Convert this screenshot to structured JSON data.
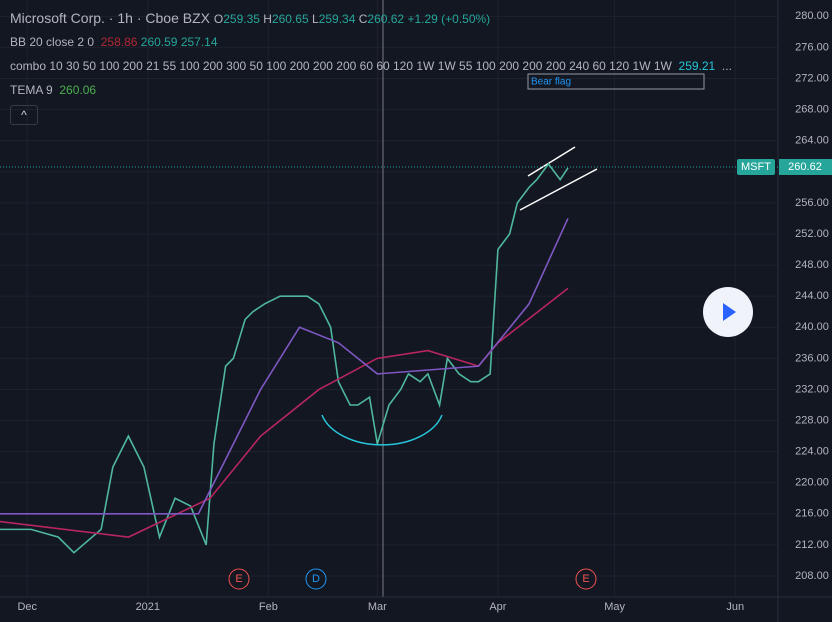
{
  "header": {
    "symbol": "Microsoft Corp.",
    "interval": "1h",
    "exchange": "Cboe BZX",
    "o_label": "O",
    "o": "259.35",
    "h_label": "H",
    "h": "260.65",
    "l_label": "L",
    "l": "259.34",
    "c_label": "C",
    "c": "260.62",
    "change": "+1.29 (+0.50%)"
  },
  "indicators": [
    {
      "name": "BB 20 close 2 0",
      "values": [
        "258.86",
        "260.59",
        "257.14"
      ]
    },
    {
      "name": "combo 10 30 50 100 200 21 55 100 200 300 50 100 200 200 200 60 60 120 1W 1W 55 100 200 200 200 240 60 120 1W 1W",
      "values": [
        "259.21",
        "..."
      ]
    },
    {
      "name": "TEMA 9",
      "values": [
        "260.06"
      ]
    }
  ],
  "annotation": "Bear flag",
  "events": [
    "E",
    "D",
    "E"
  ],
  "chart_data": {
    "type": "line",
    "symbol_tag": "MSFT",
    "last_price": 260.62,
    "xlim": [
      -7,
      193
    ],
    "ylim": [
      205.3,
      282.1
    ],
    "xticks": [
      {
        "value": 0,
        "label": "Dec"
      },
      {
        "value": 31,
        "label": "2021"
      },
      {
        "value": 62,
        "label": "Feb"
      },
      {
        "value": 90,
        "label": "Mar"
      },
      {
        "value": 121,
        "label": "Apr"
      },
      {
        "value": 151,
        "label": "May"
      },
      {
        "value": 182,
        "label": "Jun"
      }
    ],
    "yticks": [
      {
        "value": 208,
        "label": "208.00"
      },
      {
        "value": 212,
        "label": "212.00"
      },
      {
        "value": 216,
        "label": "216.00"
      },
      {
        "value": 220,
        "label": "220.00"
      },
      {
        "value": 224,
        "label": "224.00"
      },
      {
        "value": 228,
        "label": "228.00"
      },
      {
        "value": 232,
        "label": "232.00"
      },
      {
        "value": 236,
        "label": "236.00"
      },
      {
        "value": 240,
        "label": "240.00"
      },
      {
        "value": 244,
        "label": "244.00"
      },
      {
        "value": 248,
        "label": "248.00"
      },
      {
        "value": 252,
        "label": "252.00"
      },
      {
        "value": 256,
        "label": "256.00"
      },
      {
        "value": 260,
        "label": "260.00"
      },
      {
        "value": 264,
        "label": "264.00"
      },
      {
        "value": 268,
        "label": "268.00"
      },
      {
        "value": 272,
        "label": "272.00"
      },
      {
        "value": 276,
        "label": "276.00"
      },
      {
        "value": 280,
        "label": "280.00"
      }
    ],
    "series": [
      {
        "color": "#4fb89c",
        "x": [
          -7,
          1,
          8,
          12,
          19,
          22,
          26,
          30,
          34,
          38,
          42,
          46,
          48,
          51,
          53,
          56,
          58,
          61,
          65,
          69,
          72,
          75,
          78,
          80,
          83,
          85,
          88,
          90,
          93,
          96,
          98,
          101,
          103,
          106,
          108,
          111,
          114,
          116,
          119,
          121,
          124,
          126,
          129,
          131,
          134,
          137,
          139
        ],
        "values": [
          214,
          214,
          213,
          211,
          214,
          222,
          226,
          222,
          213,
          218,
          217,
          212,
          225,
          235,
          236,
          241,
          242,
          243,
          244,
          244,
          244,
          243,
          240,
          233,
          230,
          230,
          231,
          225,
          230,
          232,
          234,
          233,
          234,
          230,
          236,
          234,
          233,
          233,
          234,
          250,
          252,
          256,
          258,
          259,
          261,
          259,
          260.5
        ]
      },
      {
        "color": "#b7265e",
        "x": [
          -7,
          26,
          47,
          60,
          75,
          90,
          103,
          116,
          121,
          139
        ],
        "values": [
          215,
          213,
          218,
          226,
          232,
          236,
          237,
          235,
          238,
          245
        ]
      },
      {
        "color": "#7e57c2",
        "x": [
          -7,
          44,
          60,
          70,
          80,
          90,
          116,
          129,
          139
        ],
        "values": [
          216,
          216,
          232,
          240,
          238,
          234,
          235,
          243,
          254
        ]
      }
    ]
  }
}
